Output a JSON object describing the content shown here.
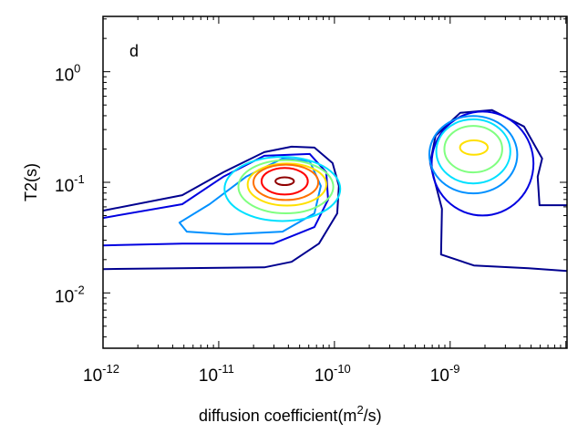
{
  "chart_data": {
    "type": "contour",
    "panel_label": "d",
    "xlabel_main": "diffusion coefficient(m",
    "xlabel_sup": "2",
    "xlabel_end": "/s)",
    "ylabel": "T2(s)",
    "xscale": "log",
    "yscale": "log",
    "xlim_log10": [
      -12,
      -7.99
    ],
    "ylim_log10": [
      -2.5,
      0.5
    ],
    "x_ticks": [
      {
        "base": "10",
        "exp": "-12",
        "log": -12
      },
      {
        "base": "10",
        "exp": "-11",
        "log": -11
      },
      {
        "base": "10",
        "exp": "-10",
        "log": -10
      },
      {
        "base": "10",
        "exp": "-9",
        "log": -9
      }
    ],
    "y_ticks": [
      {
        "base": "10",
        "exp": "0",
        "log": 0
      },
      {
        "base": "10",
        "exp": "-1",
        "log": -1
      },
      {
        "base": "10",
        "exp": "-2",
        "log": -2
      }
    ],
    "grid": false,
    "colormap": "jet",
    "contours": [
      {
        "name": "left-level-1",
        "color": "#00008f",
        "points": [
          [
            -12,
            -1.256
          ],
          [
            -11.315,
            -1.116
          ],
          [
            -10.961,
            -0.909
          ],
          [
            -10.606,
            -0.727
          ],
          [
            -10.37,
            -0.678
          ],
          [
            -10.173,
            -0.686
          ],
          [
            -10.016,
            -0.826
          ],
          [
            -9.961,
            -1.033
          ],
          [
            -9.976,
            -1.281
          ],
          [
            -10.134,
            -1.554
          ],
          [
            -10.37,
            -1.719
          ],
          [
            -10.606,
            -1.769
          ],
          [
            -12,
            -1.785
          ]
        ],
        "closed": false
      },
      {
        "name": "left-level-2",
        "color": "#0000e0",
        "points": [
          [
            -12,
            -1.322
          ],
          [
            -11.315,
            -1.198
          ],
          [
            -10.961,
            -0.95
          ],
          [
            -10.606,
            -0.76
          ],
          [
            -10.213,
            -0.744
          ],
          [
            -10.071,
            -0.909
          ],
          [
            -10.055,
            -1.157
          ],
          [
            -10.173,
            -1.405
          ],
          [
            -10.528,
            -1.554
          ],
          [
            -11.315,
            -1.554
          ],
          [
            -12,
            -1.57
          ]
        ],
        "closed": false
      },
      {
        "name": "left-level-3",
        "color": "#0090ff",
        "points": [
          [
            -11.339,
            -1.364
          ],
          [
            -11.079,
            -1.198
          ],
          [
            -10.764,
            -0.95
          ],
          [
            -10.449,
            -0.785
          ],
          [
            -10.213,
            -0.81
          ],
          [
            -10.118,
            -1.033
          ],
          [
            -10.173,
            -1.281
          ],
          [
            -10.449,
            -1.446
          ],
          [
            -10.921,
            -1.471
          ],
          [
            -11.276,
            -1.446
          ]
        ],
        "closed": true
      },
      {
        "name": "left-level-4",
        "color": "#00e0ff",
        "ellipse": {
          "center": [
            -10.45,
            -1.06
          ],
          "radii": [
            0.5,
            0.29
          ]
        }
      },
      {
        "name": "left-level-5",
        "color": "#80ff80",
        "ellipse": {
          "center": [
            -10.42,
            -1.04
          ],
          "radii": [
            0.41,
            0.24
          ]
        }
      },
      {
        "name": "left-level-6",
        "color": "#ffe000",
        "ellipse": {
          "center": [
            -10.41,
            -1.02
          ],
          "radii": [
            0.34,
            0.19
          ]
        }
      },
      {
        "name": "left-level-7",
        "color": "#ff7000",
        "ellipse": {
          "center": [
            -10.42,
            -1.0
          ],
          "radii": [
            0.28,
            0.16
          ]
        }
      },
      {
        "name": "left-level-8",
        "color": "#ff0000",
        "ellipse": {
          "center": [
            -10.43,
            -0.99
          ],
          "radii": [
            0.2,
            0.12
          ]
        }
      },
      {
        "name": "left-level-9",
        "color": "#900000",
        "ellipse": {
          "center": [
            -10.43,
            -0.99
          ],
          "radii": [
            0.08,
            0.035
          ]
        }
      },
      {
        "name": "right-level-1",
        "color": "#00008f",
        "points": [
          [
            -7.992,
            -1.207
          ],
          [
            -8.228,
            -1.207
          ],
          [
            -8.244,
            -0.95
          ],
          [
            -8.205,
            -0.785
          ],
          [
            -8.362,
            -0.496
          ],
          [
            -8.638,
            -0.347
          ],
          [
            -8.913,
            -0.372
          ],
          [
            -9.126,
            -0.579
          ],
          [
            -9.173,
            -0.826
          ],
          [
            -9.071,
            -1.24
          ],
          [
            -9.079,
            -1.653
          ],
          [
            -8.795,
            -1.752
          ],
          [
            -8.323,
            -1.777
          ],
          [
            -7.992,
            -1.802
          ]
        ],
        "closed": false
      },
      {
        "name": "right-level-2",
        "color": "#0000e0",
        "ellipse": {
          "center": [
            -8.72,
            -0.83
          ],
          "radii": [
            0.44,
            0.47
          ]
        }
      },
      {
        "name": "right-level-3",
        "color": "#0090ff",
        "ellipse": {
          "center": [
            -8.8,
            -0.75
          ],
          "radii": [
            0.38,
            0.35
          ]
        }
      },
      {
        "name": "right-level-4",
        "color": "#00e0ff",
        "ellipse": {
          "center": [
            -8.8,
            -0.72
          ],
          "radii": [
            0.32,
            0.29
          ]
        }
      },
      {
        "name": "right-level-5",
        "color": "#80ff80",
        "ellipse": {
          "center": [
            -8.8,
            -0.7
          ],
          "radii": [
            0.25,
            0.21
          ]
        }
      },
      {
        "name": "right-level-6",
        "color": "#ffe000",
        "ellipse": {
          "center": [
            -8.795,
            -0.686
          ],
          "radii": [
            0.12,
            0.065
          ]
        }
      }
    ]
  }
}
